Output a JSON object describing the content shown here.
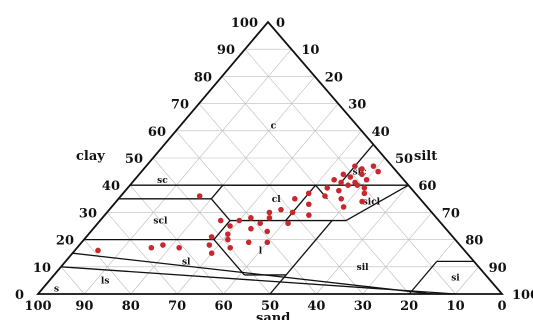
{
  "chart_data": {
    "type": "scatter",
    "subtype": "soil-texture-ternary",
    "title": "",
    "axes": {
      "clay": {
        "label": "clay",
        "range": [
          0,
          100
        ],
        "ticks": [
          0,
          10,
          20,
          30,
          40,
          50,
          60,
          70,
          80,
          90,
          100
        ],
        "side": "left"
      },
      "silt": {
        "label": "silt",
        "range": [
          0,
          100
        ],
        "ticks": [
          0,
          10,
          20,
          30,
          40,
          50,
          60,
          70,
          80,
          90,
          100
        ],
        "side": "right"
      },
      "sand": {
        "label": "sand",
        "range": [
          0,
          100
        ],
        "ticks": [
          100,
          90,
          80,
          70,
          60,
          50,
          40,
          30,
          20,
          10,
          0
        ],
        "side": "bottom"
      }
    },
    "grid": true,
    "regions": [
      {
        "label": "c",
        "clay": 62,
        "silt": 20
      },
      {
        "label": "sc",
        "clay": 42,
        "silt": 6
      },
      {
        "label": "sic",
        "clay": 45,
        "silt": 47
      },
      {
        "label": "cl",
        "clay": 35,
        "silt": 34
      },
      {
        "label": "sicl",
        "clay": 34,
        "silt": 55
      },
      {
        "label": "scl",
        "clay": 27,
        "silt": 13
      },
      {
        "label": "sl",
        "clay": 12,
        "silt": 26
      },
      {
        "label": "l",
        "clay": 16,
        "silt": 40
      },
      {
        "label": "sil",
        "clay": 10,
        "silt": 65
      },
      {
        "label": "ls",
        "clay": 5,
        "silt": 12
      },
      {
        "label": "s",
        "clay": 2,
        "silt": 3
      },
      {
        "label": "si",
        "clay": 6,
        "silt": 87
      }
    ],
    "points": [
      {
        "clay": 47,
        "silt": 45
      },
      {
        "clay": 47,
        "silt": 49
      },
      {
        "clay": 46,
        "silt": 47
      },
      {
        "clay": 45,
        "silt": 51
      },
      {
        "clay": 44,
        "silt": 44
      },
      {
        "clay": 44,
        "silt": 48
      },
      {
        "clay": 43,
        "silt": 46
      },
      {
        "clay": 42,
        "silt": 43
      },
      {
        "clay": 42,
        "silt": 50
      },
      {
        "clay": 41,
        "silt": 45
      },
      {
        "clay": 41,
        "silt": 48
      },
      {
        "clay": 40,
        "silt": 47
      },
      {
        "clay": 40,
        "silt": 49
      },
      {
        "clay": 39,
        "silt": 51
      },
      {
        "clay": 39,
        "silt": 43
      },
      {
        "clay": 38,
        "silt": 46
      },
      {
        "clay": 37,
        "silt": 40
      },
      {
        "clay": 37,
        "silt": 52
      },
      {
        "clay": 36,
        "silt": 44
      },
      {
        "clay": 35,
        "silt": 48
      },
      {
        "clay": 35,
        "silt": 38
      },
      {
        "clay": 34,
        "silt": 53
      },
      {
        "clay": 33,
        "silt": 42
      },
      {
        "clay": 32,
        "silt": 50
      },
      {
        "clay": 31,
        "silt": 37
      },
      {
        "clay": 30,
        "silt": 35
      },
      {
        "clay": 30,
        "silt": 40
      },
      {
        "clay": 29,
        "silt": 44
      },
      {
        "clay": 28,
        "silt": 36
      },
      {
        "clay": 28,
        "silt": 32
      },
      {
        "clay": 27,
        "silt": 30
      },
      {
        "clay": 27,
        "silt": 26
      },
      {
        "clay": 26,
        "silt": 35
      },
      {
        "clay": 26,
        "silt": 41
      },
      {
        "clay": 25,
        "silt": 29
      },
      {
        "clay": 24,
        "silt": 34
      },
      {
        "clay": 23,
        "silt": 38
      },
      {
        "clay": 22,
        "silt": 30
      },
      {
        "clay": 21,
        "silt": 27
      },
      {
        "clay": 20,
        "silt": 31
      },
      {
        "clay": 19,
        "silt": 36
      },
      {
        "clay": 19,
        "silt": 40
      },
      {
        "clay": 18,
        "silt": 28
      },
      {
        "clay": 17,
        "silt": 33
      },
      {
        "clay": 17,
        "silt": 16
      },
      {
        "clay": 18,
        "silt": 18
      },
      {
        "clay": 17,
        "silt": 22
      },
      {
        "clay": 16,
        "silt": 5
      },
      {
        "clay": 15,
        "silt": 30
      },
      {
        "clay": 36,
        "silt": 17
      }
    ]
  }
}
